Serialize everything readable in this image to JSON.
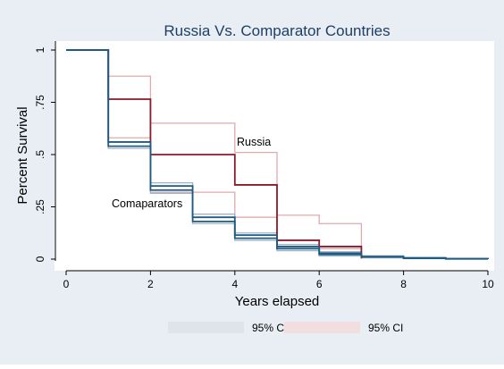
{
  "chart_data": {
    "type": "line",
    "title": "Russia Vs. Comparator Countries",
    "xlabel": "Years elapsed",
    "ylabel": "Percent Survival",
    "xlim": [
      0,
      10
    ],
    "ylim": [
      0,
      1
    ],
    "x_ticks": [
      "0",
      "2",
      "4",
      "6",
      "8",
      "10"
    ],
    "y_ticks": [
      "0",
      ".25",
      ".5",
      ".75",
      "1"
    ],
    "grid": false,
    "legend": {
      "placement": "bottom",
      "items": [
        "95% CI",
        "95% CI"
      ]
    },
    "annotations": [
      "Russia",
      "Comaparators"
    ],
    "colors": {
      "russia": "#8b1a2b",
      "russia_ci": "#e0a9ae",
      "comparator": "#1f5a82",
      "comparator_ci": "#9fb3c6",
      "frame_bg": "#e8eef3",
      "plot_bg": "#ffffff",
      "title": "#1e3f66",
      "legend_russia_ci": "#f2dede",
      "legend_comparator_ci": "#dfe4ea"
    },
    "series": [
      {
        "group": "russia",
        "kind": "estimate",
        "x": [
          0,
          1,
          2,
          4,
          5,
          6,
          7
        ],
        "y": [
          1,
          0.765,
          0.5,
          0.355,
          0.09,
          0.06,
          0.005
        ]
      },
      {
        "group": "russia",
        "kind": "ci",
        "x": [
          0,
          1,
          2,
          4,
          5,
          6,
          7
        ],
        "y": [
          1,
          0.875,
          0.65,
          0.51,
          0.21,
          0.17,
          0.0
        ]
      },
      {
        "group": "russia",
        "kind": "ci",
        "x": [
          0,
          1,
          2,
          3,
          4,
          5,
          7
        ],
        "y": [
          1,
          0.58,
          0.32,
          0.32,
          0.2,
          0.05,
          0.0
        ]
      },
      {
        "group": "comparator",
        "kind": "estimate",
        "x": [
          0,
          1,
          2,
          3,
          4,
          5,
          6,
          7,
          8,
          9,
          10
        ],
        "y": [
          1,
          0.56,
          0.35,
          0.2,
          0.115,
          0.06,
          0.028,
          0.012,
          0.006,
          0.002,
          0.0
        ]
      },
      {
        "group": "comparator",
        "kind": "estimate",
        "x": [
          0,
          1,
          2,
          3,
          4,
          5,
          6,
          7,
          8,
          9,
          10
        ],
        "y": [
          1,
          0.54,
          0.33,
          0.18,
          0.1,
          0.05,
          0.022,
          0.01,
          0.004,
          0.001,
          0.0
        ]
      },
      {
        "group": "comparator",
        "kind": "ci",
        "x": [
          0,
          1,
          2,
          3,
          4,
          5,
          6,
          7,
          8,
          9,
          10
        ],
        "y": [
          1,
          0.765,
          0.365,
          0.215,
          0.125,
          0.07,
          0.035,
          0.016,
          0.008,
          0.003,
          0.0
        ]
      },
      {
        "group": "comparator",
        "kind": "ci",
        "x": [
          0,
          1,
          2,
          3,
          4,
          5,
          6,
          7,
          8,
          9,
          10
        ],
        "y": [
          1,
          0.53,
          0.315,
          0.17,
          0.09,
          0.04,
          0.015,
          0.006,
          0.002,
          0.0,
          0.0
        ]
      }
    ]
  }
}
